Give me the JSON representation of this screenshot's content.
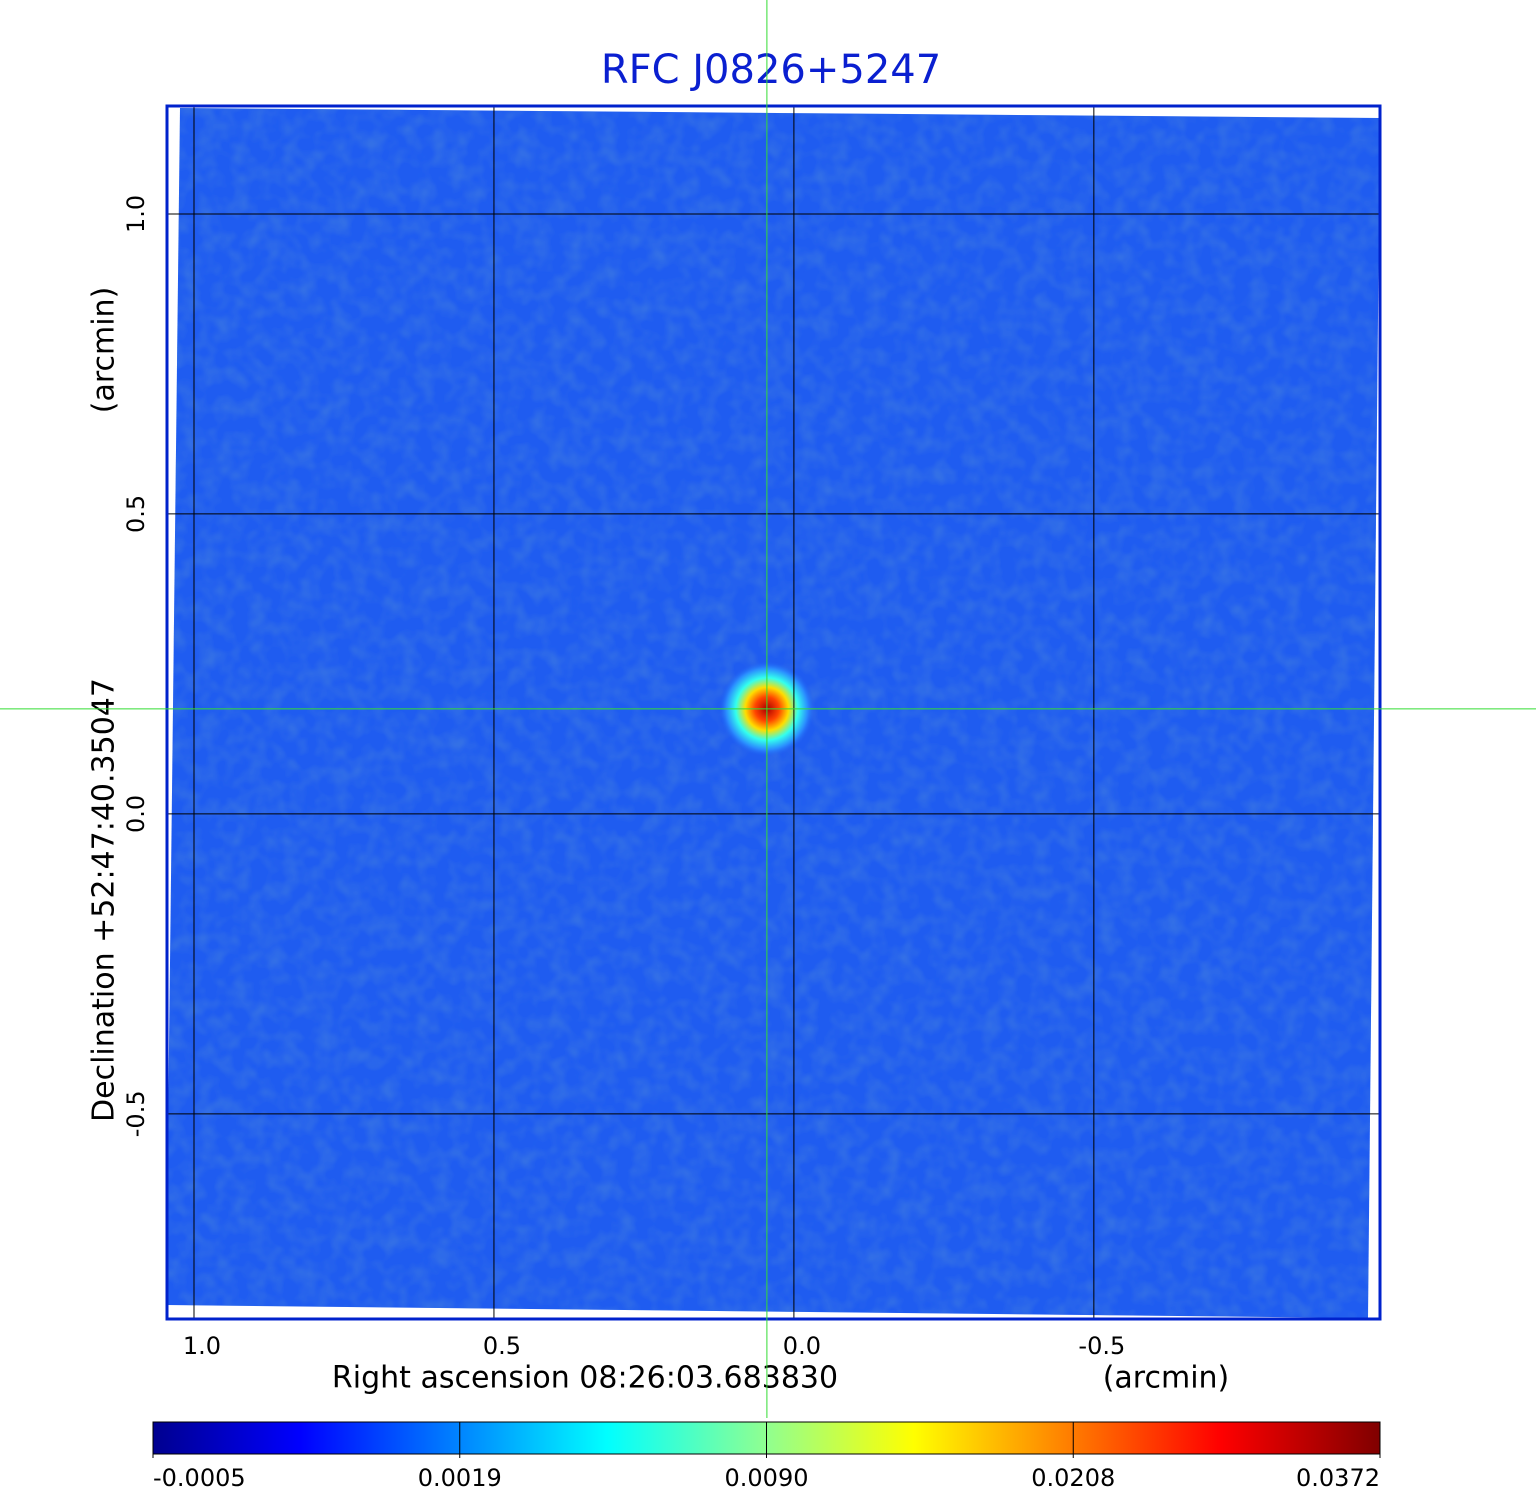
{
  "chart_data": {
    "type": "image",
    "title": "RFC J0826+5247",
    "x_label": "Right ascension  08:26:03.683830",
    "x_unit": "(arcmin)",
    "y_label": "Declination  +52:47:40.35047",
    "y_unit": "(arcmin)",
    "xlim": [
      1.045,
      -0.977
    ],
    "ylim": [
      -0.842,
      1.18
    ],
    "xticks": [
      {
        "value": 1,
        "label": "1.0"
      },
      0.5,
      {
        "value": 0,
        "label": "0.0"
      },
      -0.5
    ],
    "yticks": [
      {
        "value": 1,
        "label": "1.0"
      },
      0.5,
      {
        "value": 0,
        "label": "0.0"
      },
      -0.5
    ],
    "grid": true,
    "crosshair": {
      "x": 0.045,
      "y": 0.175,
      "color": "#33dd33"
    },
    "colorbar_ticks": [
      -0.0005,
      0.0019,
      {
        "value": 0.009,
        "label": "0.0090"
      },
      0.0208,
      0.0372
    ],
    "frame_color": "#0022cc"
  }
}
